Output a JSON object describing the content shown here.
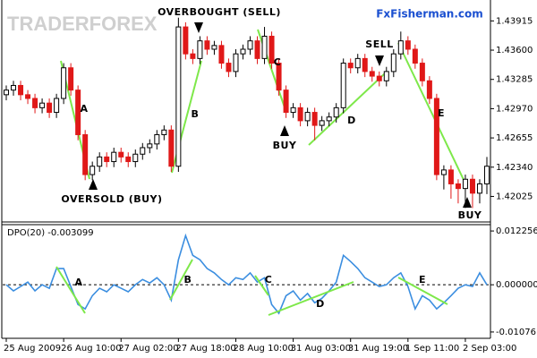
{
  "chart_data": [
    {
      "type": "candlestick",
      "brand": "TRADERFOREX",
      "source": "FxFisherman.com",
      "categories": [
        "25 Aug 2009",
        null,
        null,
        null,
        null,
        null,
        null,
        null,
        "26 Aug 10:00",
        null,
        null,
        null,
        null,
        null,
        null,
        null,
        "27 Aug 02:00",
        null,
        null,
        null,
        null,
        null,
        null,
        null,
        "27 Aug 18:00",
        null,
        null,
        null,
        null,
        null,
        null,
        null,
        "28 Aug 10:00",
        null,
        null,
        null,
        null,
        null,
        null,
        null,
        "31 Aug 03:00",
        null,
        null,
        null,
        null,
        null,
        null,
        null,
        "31 Aug 19:00",
        null,
        null,
        null,
        null,
        null,
        null,
        null,
        "1 Sep 11:00",
        null,
        null,
        null,
        null,
        null,
        null,
        null,
        "2 Sep 03:00",
        null,
        null,
        null
      ],
      "open": [
        1.4312,
        1.4317,
        1.4322,
        1.4312,
        1.4308,
        1.4298,
        1.4303,
        1.4293,
        1.4308,
        1.4341,
        1.4317,
        1.4269,
        1.4226,
        1.4235,
        1.4245,
        1.424,
        1.425,
        1.4245,
        1.424,
        1.4248,
        1.4255,
        1.4259,
        1.4269,
        1.4274,
        1.4235,
        1.4385,
        1.4356,
        1.4351,
        1.437,
        1.4361,
        1.4365,
        1.4346,
        1.4337,
        1.4356,
        1.4361,
        1.437,
        1.4351,
        1.4375,
        1.4346,
        1.4317,
        1.4293,
        1.4298,
        1.4284,
        1.4293,
        1.4279,
        1.4284,
        1.4288,
        1.4298,
        1.4346,
        1.4341,
        1.4351,
        1.4337,
        1.4332,
        1.4327,
        1.4337,
        1.4356,
        1.437,
        1.4361,
        1.4346,
        1.4327,
        1.4308,
        1.4226,
        1.4231,
        1.4216,
        1.4211,
        1.4221,
        1.4206,
        1.4216
      ],
      "high": [
        1.4322,
        1.4327,
        1.4327,
        1.4317,
        1.4313,
        1.4308,
        1.4308,
        1.4313,
        1.4346,
        1.4346,
        1.4322,
        1.4274,
        1.424,
        1.425,
        1.425,
        1.4255,
        1.4255,
        1.425,
        1.4253,
        1.426,
        1.4264,
        1.4274,
        1.4279,
        1.4279,
        1.4395,
        1.439,
        1.4361,
        1.4375,
        1.4375,
        1.437,
        1.437,
        1.4351,
        1.4361,
        1.4366,
        1.4375,
        1.4375,
        1.4385,
        1.438,
        1.4351,
        1.4322,
        1.4303,
        1.4303,
        1.4298,
        1.4298,
        1.4289,
        1.4293,
        1.4303,
        1.4351,
        1.4351,
        1.4356,
        1.4356,
        1.4342,
        1.4337,
        1.4342,
        1.4361,
        1.438,
        1.4375,
        1.4366,
        1.4351,
        1.4332,
        1.4313,
        1.4236,
        1.4236,
        1.4221,
        1.4226,
        1.4226,
        1.4221,
        1.4245
      ],
      "low": [
        1.4306,
        1.4311,
        1.4306,
        1.4302,
        1.4292,
        1.4292,
        1.4287,
        1.4287,
        1.4302,
        1.4311,
        1.4263,
        1.422,
        1.422,
        1.4229,
        1.4234,
        1.4234,
        1.4239,
        1.4234,
        1.4234,
        1.4242,
        1.4249,
        1.4253,
        1.4263,
        1.4229,
        1.4229,
        1.435,
        1.4345,
        1.4345,
        1.4355,
        1.4355,
        1.434,
        1.4331,
        1.4331,
        1.435,
        1.4355,
        1.4345,
        1.4345,
        1.434,
        1.4311,
        1.4287,
        1.4287,
        1.4278,
        1.4278,
        1.4263,
        1.4273,
        1.4278,
        1.4282,
        1.4292,
        1.4335,
        1.4335,
        1.4331,
        1.4326,
        1.4321,
        1.4321,
        1.4331,
        1.435,
        1.4355,
        1.434,
        1.4321,
        1.4302,
        1.422,
        1.421,
        1.42,
        1.4195,
        1.419,
        1.419,
        1.4195,
        1.4205
      ],
      "close": [
        1.4317,
        1.4322,
        1.4312,
        1.4308,
        1.4298,
        1.4303,
        1.4293,
        1.4308,
        1.4341,
        1.4317,
        1.4269,
        1.4226,
        1.4235,
        1.4245,
        1.424,
        1.425,
        1.4245,
        1.424,
        1.4248,
        1.4255,
        1.4259,
        1.4269,
        1.4274,
        1.4235,
        1.4385,
        1.4356,
        1.4351,
        1.437,
        1.4361,
        1.4365,
        1.4346,
        1.4337,
        1.4356,
        1.4361,
        1.437,
        1.4351,
        1.4375,
        1.4346,
        1.4317,
        1.4293,
        1.4298,
        1.4284,
        1.4293,
        1.4279,
        1.4284,
        1.4288,
        1.4298,
        1.4346,
        1.4341,
        1.4351,
        1.4337,
        1.4332,
        1.4327,
        1.4337,
        1.4356,
        1.437,
        1.4361,
        1.4346,
        1.4327,
        1.4308,
        1.4226,
        1.4231,
        1.4216,
        1.4211,
        1.4221,
        1.4206,
        1.4216,
        1.4235
      ],
      "up_color": "#000000",
      "down_color": "#e01818",
      "ylim": [
        1.4175,
        1.4414
      ],
      "yticks": [
        1.43915,
        {
          "value": 1.436,
          "label": "1.43600"
        },
        1.43285,
        {
          "value": 1.4297,
          "label": "1.42970"
        },
        1.42655,
        {
          "value": 1.4234,
          "label": "1.42340"
        },
        1.42025
      ],
      "annotations": [
        "OVERBOUGHT (SELL)",
        "SELL",
        "BUY",
        "OVERSOLD (BUY)",
        "BUY",
        "A",
        "B",
        "C",
        "D",
        "E"
      ]
    },
    {
      "type": "line",
      "title": "DPO(20) -0.003099",
      "values": [
        0,
        -0.0014,
        -0.0004,
        0.0006,
        -0.0014,
        0,
        -0.0008,
        0.0037,
        0.0037,
        -0.0004,
        -0.0045,
        -0.0055,
        -0.0025,
        -0.0008,
        -0.0016,
        0,
        -0.0008,
        -0.0016,
        0,
        0.0012,
        0.0004,
        0.0016,
        0,
        -0.0035,
        0.0057,
        0.0112,
        0.0067,
        0.0057,
        0.0037,
        0.0027,
        0.0012,
        0,
        0.0016,
        0.0012,
        0.0027,
        0.0006,
        0.0016,
        -0.0045,
        -0.0065,
        -0.0025,
        -0.0014,
        -0.0035,
        -0.002,
        -0.0041,
        -0.0031,
        -0.0014,
        0.0006,
        0.0067,
        0.0053,
        0.0037,
        0.0016,
        0.0006,
        -0.0004,
        0,
        0.0016,
        0.0027,
        -0.0004,
        -0.0055,
        -0.0025,
        -0.0035,
        -0.0055,
        -0.0041,
        -0.0025,
        -0.0008,
        0,
        -0.0004,
        0.0027,
        0
      ],
      "color": "#3b8ee0",
      "ylim": [
        -0.012,
        0.0137
      ],
      "yticks": [
        0.012256,
        {
          "value": 0,
          "label": "0.000000"
        },
        -0.010761
      ],
      "annotations": [
        "A",
        "B",
        "C",
        "D",
        "E"
      ]
    }
  ]
}
